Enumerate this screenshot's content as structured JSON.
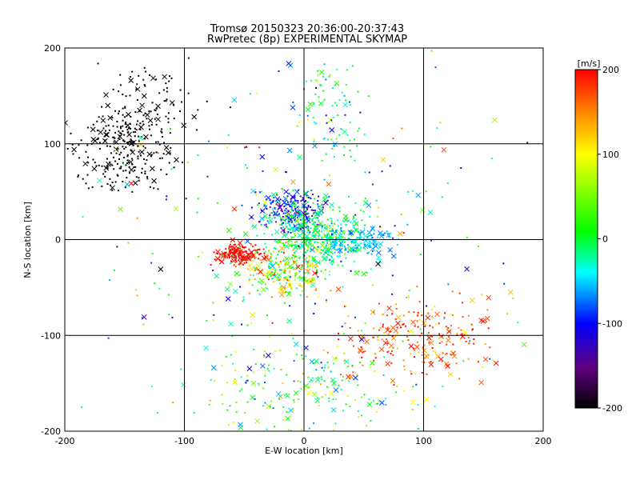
{
  "chart_data": {
    "type": "scatter",
    "title": "Tromsø 20150323 20:36:00-20:37:43",
    "subtitle": "RwPretec (8p) EXPERIMENTAL SKYMAP",
    "xlabel": "E-W location [km]",
    "ylabel": "N-S location [km]",
    "xlim": [
      -200,
      200
    ],
    "ylim": [
      -200,
      200
    ],
    "xticks": [
      "-200",
      "-100",
      "0",
      "100",
      "200"
    ],
    "yticks": [
      "-200",
      "-100",
      "0",
      "100",
      "200"
    ],
    "grid": true,
    "color_scale": {
      "unit": "[m/s]",
      "range": [
        -200,
        200
      ],
      "ticks": [
        "200",
        "100",
        "0",
        "-100",
        "-200"
      ],
      "colormap": [
        "#000000",
        "#8000a0",
        "#0000ff",
        "#00ffff",
        "#00ff00",
        "#ffff00",
        "#ff8000",
        "#ff0000"
      ]
    },
    "point_markers": [
      "dot",
      "x"
    ],
    "clusters": [
      {
        "region": "north-west",
        "center": [
          -150,
          95
        ],
        "spread": [
          28,
          30
        ],
        "velocity": -200,
        "velocity_spread": 5,
        "density": 260
      },
      {
        "region": "north-west upper",
        "center": [
          -130,
          150
        ],
        "spread": [
          30,
          25
        ],
        "velocity": -195,
        "velocity_spread": 5,
        "density": 70
      },
      {
        "region": "north-center",
        "center": [
          -10,
          30
        ],
        "spread": [
          22,
          14
        ],
        "velocity": -90,
        "velocity_spread": 40,
        "density": 220
      },
      {
        "region": "center",
        "center": [
          10,
          5
        ],
        "spread": [
          30,
          25
        ],
        "velocity": 10,
        "velocity_spread": 40,
        "density": 420
      },
      {
        "region": "center-east",
        "center": [
          40,
          0
        ],
        "spread": [
          25,
          12
        ],
        "velocity": -40,
        "velocity_spread": 20,
        "density": 170
      },
      {
        "region": "center-west",
        "center": [
          -55,
          -15
        ],
        "spread": [
          14,
          8
        ],
        "velocity": 195,
        "velocity_spread": 10,
        "density": 150
      },
      {
        "region": "south-center",
        "center": [
          -20,
          -35
        ],
        "spread": [
          25,
          18
        ],
        "velocity": 60,
        "velocity_spread": 80,
        "density": 230
      },
      {
        "region": "north band",
        "center": [
          20,
          140
        ],
        "spread": [
          20,
          45
        ],
        "velocity": 0,
        "velocity_spread": 60,
        "density": 80
      },
      {
        "region": "south-east",
        "center": [
          95,
          -100
        ],
        "spread": [
          45,
          30
        ],
        "velocity": 160,
        "velocity_spread": 50,
        "density": 230
      },
      {
        "region": "south",
        "center": [
          0,
          -150
        ],
        "spread": [
          70,
          35
        ],
        "velocity": 20,
        "velocity_spread": 70,
        "density": 220
      },
      {
        "region": "background",
        "center": [
          0,
          0
        ],
        "spread": [
          130,
          120
        ],
        "velocity": 0,
        "velocity_spread": 130,
        "density": 260
      }
    ]
  }
}
